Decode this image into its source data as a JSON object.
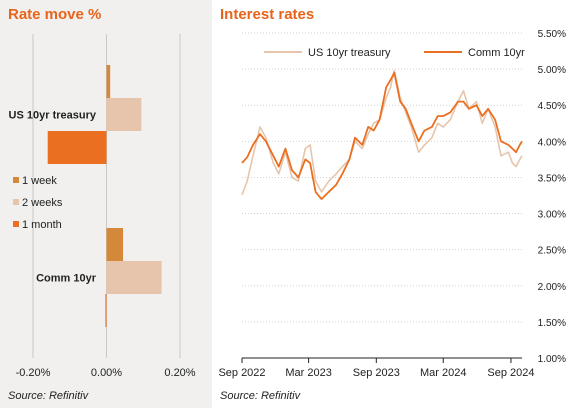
{
  "chart_data": [
    {
      "type": "bar",
      "orientation": "horizontal",
      "title": "Rate move %",
      "source": "Source: Refinitiv",
      "categories": [
        "US 10yr treasury",
        "Comm 10yr"
      ],
      "series": [
        {
          "name": "1 week",
          "values": [
            0.01,
            0.045
          ],
          "color": "#d4893a"
        },
        {
          "name": "2 weeks",
          "values": [
            0.095,
            0.15
          ],
          "color": "#e6c5ac"
        },
        {
          "name": "1 month",
          "values": [
            -0.16,
            -0.003
          ],
          "color": "#ea6f20"
        }
      ],
      "xlim": [
        -0.2,
        0.2
      ],
      "xticks": [
        -0.2,
        0,
        0.2
      ],
      "xtick_labels": [
        "-0.20%",
        "0.00%",
        "0.20%"
      ],
      "grid": true,
      "legend_position": "left"
    },
    {
      "type": "line",
      "title": "Interest rates",
      "source": "Source: Refinitiv",
      "ylim": [
        1,
        5.5
      ],
      "yticks": [
        1,
        1.5,
        2,
        2.5,
        3,
        3.5,
        4,
        4.5,
        5,
        5.5
      ],
      "ytick_labels": [
        "1.00%",
        "1.50%",
        "2.00%",
        "2.50%",
        "3.00%",
        "3.50%",
        "4.00%",
        "4.50%",
        "5.00%",
        "5.50%"
      ],
      "xticks": [
        "2022-09",
        "2023-03",
        "2023-09",
        "2024-03",
        "2024-09"
      ],
      "xtick_labels": [
        "Sep 2022",
        "Mar 2023",
        "Sep 2023",
        "Mar 2024",
        "Sep 2024"
      ],
      "grid": true,
      "legend_position": "top",
      "series": [
        {
          "name": "US 10yr treasury",
          "color": "#e6c5ac",
          "points": [
            [
              "2022-09-01",
              3.26
            ],
            [
              "2022-09-15",
              3.45
            ],
            [
              "2022-10-01",
              3.8
            ],
            [
              "2022-10-20",
              4.2
            ],
            [
              "2022-11-05",
              4.05
            ],
            [
              "2022-11-25",
              3.7
            ],
            [
              "2022-12-10",
              3.55
            ],
            [
              "2022-12-28",
              3.85
            ],
            [
              "2023-01-15",
              3.5
            ],
            [
              "2023-02-01",
              3.45
            ],
            [
              "2023-02-20",
              3.9
            ],
            [
              "2023-03-05",
              3.95
            ],
            [
              "2023-03-20",
              3.45
            ],
            [
              "2023-04-05",
              3.3
            ],
            [
              "2023-04-25",
              3.45
            ],
            [
              "2023-05-15",
              3.55
            ],
            [
              "2023-06-01",
              3.65
            ],
            [
              "2023-06-20",
              3.75
            ],
            [
              "2023-07-05",
              4.0
            ],
            [
              "2023-07-25",
              3.9
            ],
            [
              "2023-08-10",
              4.1
            ],
            [
              "2023-08-25",
              4.25
            ],
            [
              "2023-09-10",
              4.3
            ],
            [
              "2023-09-28",
              4.6
            ],
            [
              "2023-10-10",
              4.75
            ],
            [
              "2023-10-20",
              4.98
            ],
            [
              "2023-11-05",
              4.6
            ],
            [
              "2023-11-20",
              4.4
            ],
            [
              "2023-12-05",
              4.2
            ],
            [
              "2023-12-25",
              3.85
            ],
            [
              "2024-01-10",
              3.95
            ],
            [
              "2024-01-30",
              4.05
            ],
            [
              "2024-02-15",
              4.25
            ],
            [
              "2024-03-01",
              4.2
            ],
            [
              "2024-03-20",
              4.3
            ],
            [
              "2024-04-10",
              4.55
            ],
            [
              "2024-04-25",
              4.7
            ],
            [
              "2024-05-10",
              4.45
            ],
            [
              "2024-05-30",
              4.55
            ],
            [
              "2024-06-15",
              4.25
            ],
            [
              "2024-07-01",
              4.45
            ],
            [
              "2024-07-20",
              4.2
            ],
            [
              "2024-08-05",
              3.8
            ],
            [
              "2024-08-25",
              3.85
            ],
            [
              "2024-09-05",
              3.7
            ],
            [
              "2024-09-15",
              3.65
            ],
            [
              "2024-09-25",
              3.75
            ],
            [
              "2024-10-01",
              3.8
            ]
          ]
        },
        {
          "name": "Comm 10yr",
          "color": "#ea6f20",
          "points": [
            [
              "2022-09-01",
              3.7
            ],
            [
              "2022-09-15",
              3.78
            ],
            [
              "2022-10-01",
              3.95
            ],
            [
              "2022-10-20",
              4.1
            ],
            [
              "2022-11-05",
              4.0
            ],
            [
              "2022-11-25",
              3.8
            ],
            [
              "2022-12-10",
              3.65
            ],
            [
              "2022-12-28",
              3.9
            ],
            [
              "2023-01-15",
              3.6
            ],
            [
              "2023-02-01",
              3.5
            ],
            [
              "2023-02-20",
              3.75
            ],
            [
              "2023-03-05",
              3.7
            ],
            [
              "2023-03-20",
              3.3
            ],
            [
              "2023-04-05",
              3.2
            ],
            [
              "2023-04-25",
              3.3
            ],
            [
              "2023-05-15",
              3.4
            ],
            [
              "2023-06-01",
              3.55
            ],
            [
              "2023-06-20",
              3.75
            ],
            [
              "2023-07-05",
              4.05
            ],
            [
              "2023-07-25",
              3.95
            ],
            [
              "2023-08-10",
              4.2
            ],
            [
              "2023-08-25",
              4.15
            ],
            [
              "2023-09-10",
              4.3
            ],
            [
              "2023-09-28",
              4.75
            ],
            [
              "2023-10-10",
              4.85
            ],
            [
              "2023-10-20",
              4.95
            ],
            [
              "2023-11-05",
              4.55
            ],
            [
              "2023-11-20",
              4.45
            ],
            [
              "2023-12-05",
              4.25
            ],
            [
              "2023-12-25",
              4.0
            ],
            [
              "2024-01-10",
              4.15
            ],
            [
              "2024-01-30",
              4.2
            ],
            [
              "2024-02-15",
              4.35
            ],
            [
              "2024-03-01",
              4.35
            ],
            [
              "2024-03-20",
              4.4
            ],
            [
              "2024-04-10",
              4.55
            ],
            [
              "2024-04-25",
              4.55
            ],
            [
              "2024-05-10",
              4.45
            ],
            [
              "2024-05-30",
              4.5
            ],
            [
              "2024-06-15",
              4.35
            ],
            [
              "2024-07-01",
              4.45
            ],
            [
              "2024-07-20",
              4.3
            ],
            [
              "2024-08-05",
              4.0
            ],
            [
              "2024-08-25",
              3.95
            ],
            [
              "2024-09-05",
              3.9
            ],
            [
              "2024-09-15",
              3.85
            ],
            [
              "2024-09-25",
              3.95
            ],
            [
              "2024-10-01",
              4.0
            ]
          ]
        }
      ]
    }
  ]
}
